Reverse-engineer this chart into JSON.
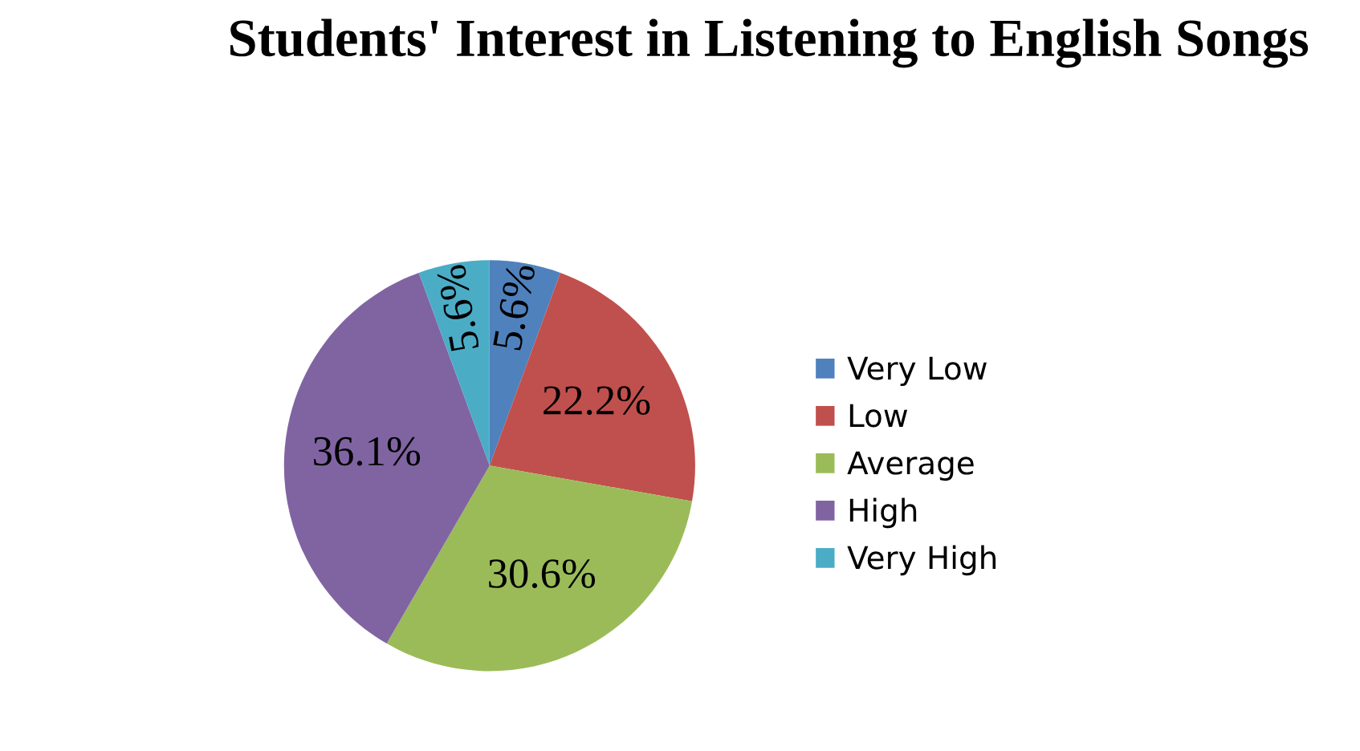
{
  "chart_data": {
    "type": "pie",
    "title": "Students' Interest in Listening to English Songs",
    "categories": [
      "Very Low",
      "Low",
      "Average",
      "High",
      "Very High"
    ],
    "values": [
      5.6,
      22.2,
      30.6,
      36.1,
      5.6
    ],
    "value_labels": [
      "5.6%",
      "22.2%",
      "30.6%",
      "36.1%",
      "5.6%"
    ],
    "colors": [
      "#4f81bd",
      "#c0504d",
      "#9bbb59",
      "#8064a2",
      "#4bacc6"
    ],
    "legend": "right"
  }
}
